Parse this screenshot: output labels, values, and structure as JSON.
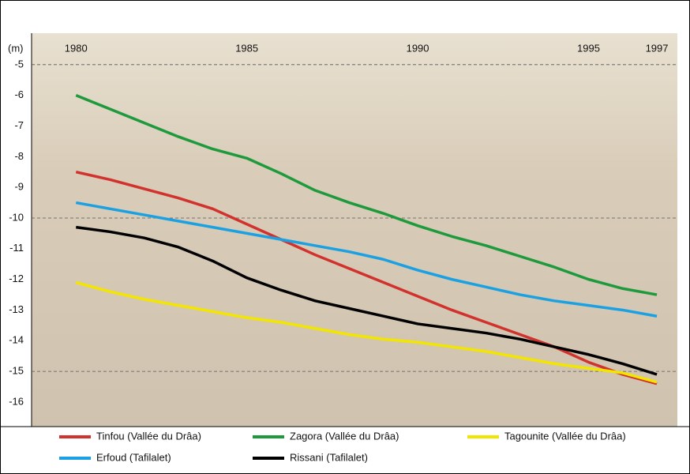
{
  "chart_data": {
    "type": "line",
    "y_label": "(m)",
    "x": [
      1980,
      1981,
      1982,
      1983,
      1984,
      1985,
      1986,
      1987,
      1988,
      1989,
      1990,
      1991,
      1992,
      1993,
      1994,
      1995,
      1996,
      1997
    ],
    "xlim": [
      1978.7,
      1997.6
    ],
    "xticks": [
      1980,
      1985,
      1990,
      1995,
      1997
    ],
    "ylim": [
      -4,
      -16.8
    ],
    "yticks": [
      -5,
      -6,
      -7,
      -8,
      -9,
      -10,
      -11,
      -12,
      -13,
      -14,
      -15,
      -16
    ],
    "grid_lines": [
      -5,
      -10,
      -15
    ],
    "series": [
      {
        "name": "Tinfou (Vallée du Drâa)",
        "color": "#d2322d",
        "values": [
          -8.5,
          -8.75,
          -9.05,
          -9.35,
          -9.7,
          -10.2,
          -10.7,
          -11.2,
          -11.65,
          -12.1,
          -12.55,
          -13.0,
          -13.4,
          -13.8,
          -14.2,
          -14.7,
          -15.1,
          -15.4
        ]
      },
      {
        "name": "Zagora (Vallée du Drâa)",
        "color": "#1e9a3c",
        "values": [
          -6.0,
          -6.45,
          -6.9,
          -7.35,
          -7.75,
          -8.05,
          -8.55,
          -9.1,
          -9.5,
          -9.85,
          -10.25,
          -10.6,
          -10.9,
          -11.25,
          -11.6,
          -12.0,
          -12.3,
          -12.5
        ]
      },
      {
        "name": "Tagounite (Vallée du Drâa)",
        "color": "#f2e600",
        "values": [
          -12.1,
          -12.4,
          -12.65,
          -12.85,
          -13.05,
          -13.25,
          -13.4,
          -13.6,
          -13.8,
          -13.95,
          -14.05,
          -14.2,
          -14.35,
          -14.55,
          -14.75,
          -14.9,
          -15.05,
          -15.35
        ]
      },
      {
        "name": "Erfoud (Tafilalet)",
        "color": "#1ba1e2",
        "values": [
          -9.5,
          -9.7,
          -9.9,
          -10.1,
          -10.3,
          -10.5,
          -10.7,
          -10.9,
          -11.1,
          -11.35,
          -11.7,
          -12.0,
          -12.25,
          -12.5,
          -12.7,
          -12.85,
          -13.0,
          -13.2
        ]
      },
      {
        "name": "Rissani (Tafilalet)",
        "color": "#000000",
        "values": [
          -10.3,
          -10.45,
          -10.65,
          -10.95,
          -11.4,
          -11.95,
          -12.35,
          -12.7,
          -12.95,
          -13.2,
          -13.45,
          -13.6,
          -13.75,
          -13.95,
          -14.2,
          -14.45,
          -14.75,
          -15.1
        ]
      }
    ]
  }
}
